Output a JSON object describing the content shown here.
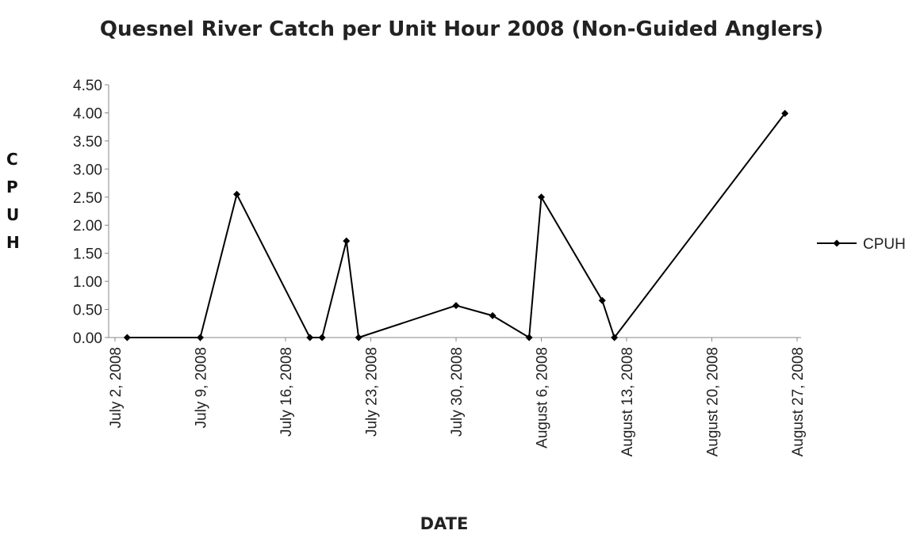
{
  "chart_data": {
    "type": "line",
    "title": "Quesnel River Catch per Unit Hour 2008 (Non-Guided Anglers)",
    "x_label": "DATE",
    "y_label": "CPUH",
    "x": [
      "2008-07-03",
      "2008-07-09",
      "2008-07-12",
      "2008-07-18",
      "2008-07-19",
      "2008-07-21",
      "2008-07-22",
      "2008-07-30",
      "2008-08-02",
      "2008-08-05",
      "2008-08-06",
      "2008-08-11",
      "2008-08-12",
      "2008-08-26"
    ],
    "series": [
      {
        "name": "CPUH",
        "color": "#000000",
        "values": [
          0,
          0,
          2.55,
          0,
          0,
          1.72,
          0,
          0.57,
          0.39,
          0,
          2.5,
          0.66,
          0,
          3.99
        ]
      }
    ],
    "xlim": [
      "2008-07-02",
      "2008-08-27"
    ],
    "xticks": [
      {
        "value": "2008-07-02",
        "label": "July 2, 2008"
      },
      {
        "value": "2008-07-09",
        "label": "July 9, 2008"
      },
      {
        "value": "2008-07-16",
        "label": "July 16, 2008"
      },
      {
        "value": "2008-07-23",
        "label": "July 23, 2008"
      },
      {
        "value": "2008-07-30",
        "label": "July 30, 2008"
      },
      {
        "value": "2008-08-06",
        "label": "August 6, 2008"
      },
      {
        "value": "2008-08-13",
        "label": "August 13, 2008"
      },
      {
        "value": "2008-08-20",
        "label": "August 20, 2008"
      },
      {
        "value": "2008-08-27",
        "label": "August 27, 2008"
      }
    ],
    "ylim": [
      0,
      4.5
    ],
    "yticks": [
      {
        "value": 0,
        "label": "0.00"
      },
      {
        "value": 0.5,
        "label": "0.50"
      },
      {
        "value": 1,
        "label": "1.00"
      },
      {
        "value": 1.5,
        "label": "1.50"
      },
      {
        "value": 2,
        "label": "2.00"
      },
      {
        "value": 2.5,
        "label": "2.50"
      },
      {
        "value": 3,
        "label": "3.00"
      },
      {
        "value": 3.5,
        "label": "3.50"
      },
      {
        "value": 4,
        "label": "4.00"
      },
      {
        "value": 4.5,
        "label": "4.50"
      }
    ],
    "grid": false,
    "legend": "right"
  }
}
